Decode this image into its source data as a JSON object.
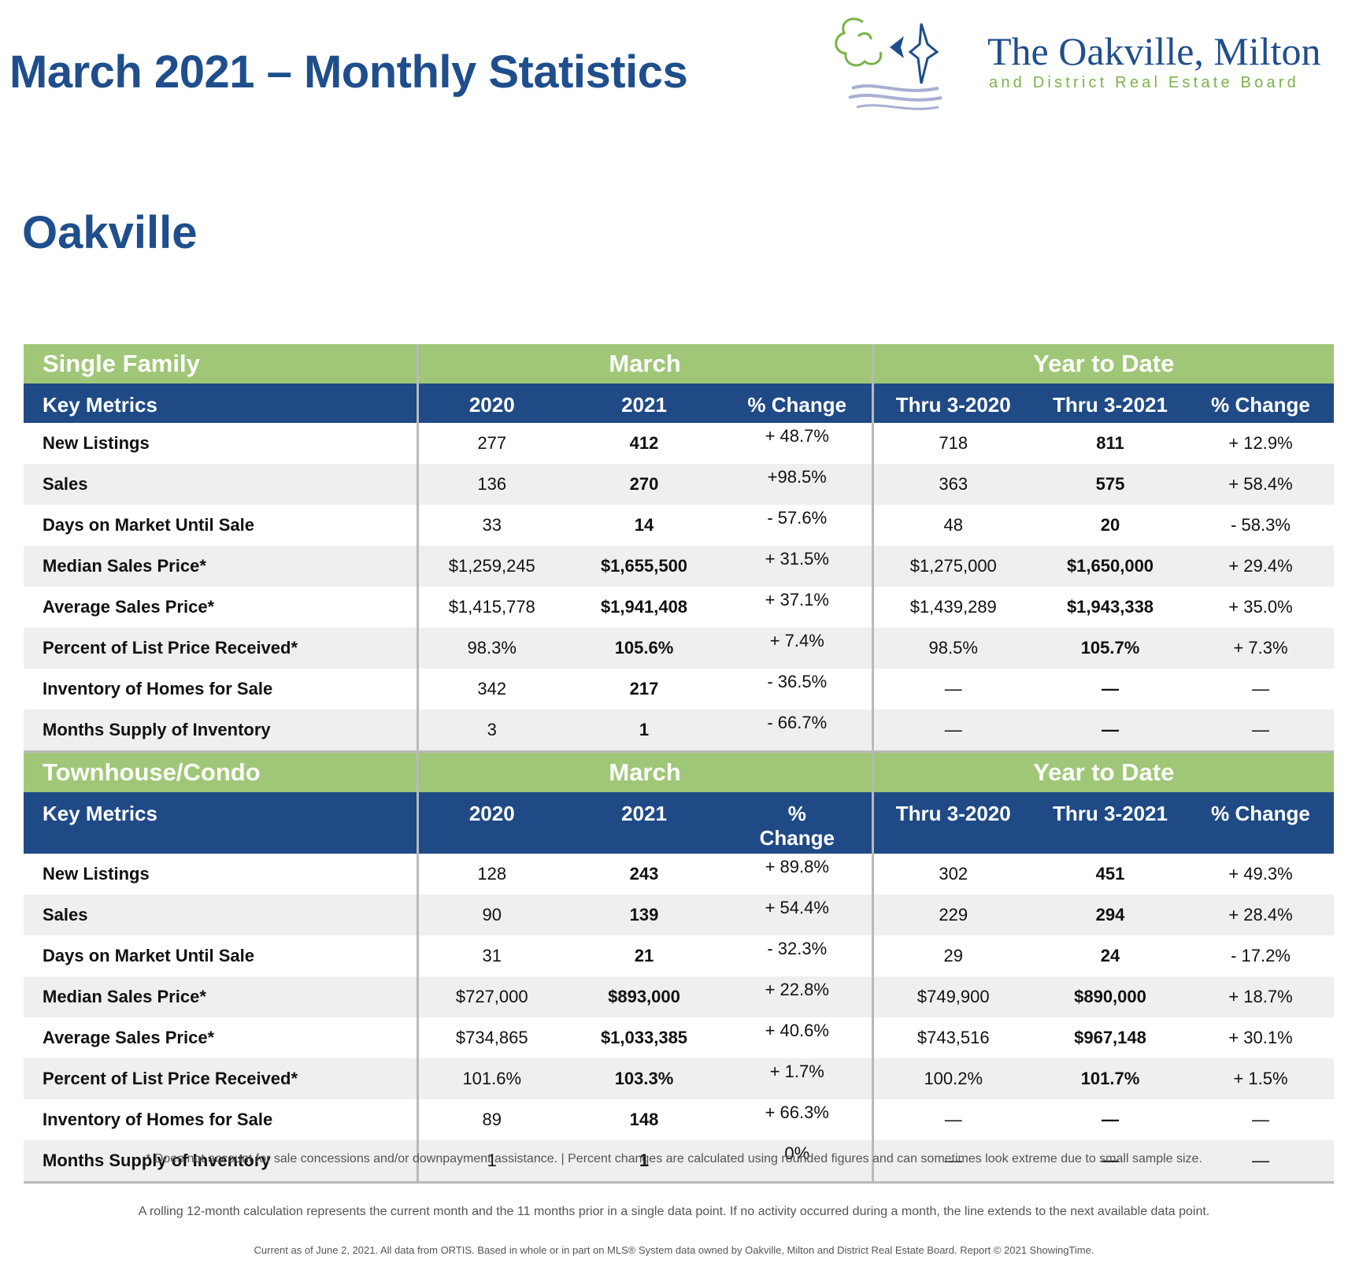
{
  "page_title": "March 2021 – Monthly Statistics",
  "logo": {
    "title": "The Oakville, Milton",
    "subtitle": "and District Real Estate Board",
    "colors": {
      "blue": "#1f4e8c",
      "green": "#7ab34a",
      "wave": "#a9aed3"
    }
  },
  "area": "Oakville",
  "colors": {
    "section_green": "#9fc777",
    "header_blue": "#1f4a86",
    "title_blue": "#1f4e8c",
    "row_alt": "#efefef"
  },
  "sections": [
    {
      "category": "Single Family",
      "month_group": "March",
      "ytd_group": "Year to Date",
      "headers": [
        "Key Metrics",
        "2020",
        "2021",
        "% Change",
        "Thru 3-2020",
        "Thru 3-2021",
        "% Change"
      ],
      "rows": [
        [
          "New Listings",
          "277",
          "412",
          "+ 48.7%",
          "718",
          "811",
          "+ 12.9%"
        ],
        [
          "Sales",
          "136",
          "270",
          "+98.5%",
          "363",
          "575",
          "+ 58.4%"
        ],
        [
          "Days on Market Until Sale",
          "33",
          "14",
          "- 57.6%",
          "48",
          "20",
          "- 58.3%"
        ],
        [
          "Median Sales Price*",
          "$1,259,245",
          "$1,655,500",
          "+ 31.5%",
          "$1,275,000",
          "$1,650,000",
          "+ 29.4%"
        ],
        [
          "Average Sales Price*",
          "$1,415,778",
          "$1,941,408",
          "+ 37.1%",
          "$1,439,289",
          "$1,943,338",
          "+ 35.0%"
        ],
        [
          "Percent of List Price Received*",
          "98.3%",
          "105.6%",
          "+ 7.4%",
          "98.5%",
          "105.7%",
          "+ 7.3%"
        ],
        [
          "Inventory of Homes for Sale",
          "342",
          "217",
          "- 36.5%",
          "—",
          "—",
          "—"
        ],
        [
          "Months Supply of Inventory",
          "3",
          "1",
          "- 66.7%",
          "—",
          "—",
          "—"
        ]
      ]
    },
    {
      "category": "Townhouse/Condo",
      "month_group": "March",
      "ytd_group": "Year to Date",
      "headers": [
        "Key Metrics",
        "2020",
        "2021",
        "% Change",
        "Thru 3-2020",
        "Thru 3-2021",
        "% Change"
      ],
      "rows": [
        [
          "New Listings",
          "128",
          "243",
          "+ 89.8%",
          "302",
          "451",
          "+ 49.3%"
        ],
        [
          "Sales",
          "90",
          "139",
          "+ 54.4%",
          "229",
          "294",
          "+ 28.4%"
        ],
        [
          "Days on Market Until Sale",
          "31",
          "21",
          "- 32.3%",
          "29",
          "24",
          "- 17.2%"
        ],
        [
          "Median Sales Price*",
          "$727,000",
          "$893,000",
          "+ 22.8%",
          "$749,900",
          "$890,000",
          "+ 18.7%"
        ],
        [
          "Average Sales Price*",
          "$734,865",
          "$1,033,385",
          "+ 40.6%",
          "$743,516",
          "$967,148",
          "+ 30.1%"
        ],
        [
          "Percent of List Price Received*",
          "101.6%",
          "103.3%",
          "+ 1.7%",
          "100.2%",
          "101.7%",
          "+ 1.5%"
        ],
        [
          "Inventory of Homes for Sale",
          "89",
          "148",
          "+ 66.3%",
          "—",
          "—",
          "—"
        ],
        [
          "Months Supply of Inventory",
          "1",
          "1",
          "0%",
          "—",
          "—",
          "—"
        ]
      ]
    }
  ],
  "footnotes": [
    "* Does not account for sale concessions and/or downpayment assistance. | Percent changes are calculated using rounded figures and can sometimes look extreme due to small sample size.",
    "A rolling 12-month calculation represents the current month and the 11 months prior in a single data point. If no activity occurred during a month, the line extends to the next available data point.",
    "Current as of June 2, 2021. All data from ORTIS. Based in whole or in part on MLS® System data owned by Oakville, Milton and District Real Estate Board. Report © 2021 ShowingTime."
  ]
}
